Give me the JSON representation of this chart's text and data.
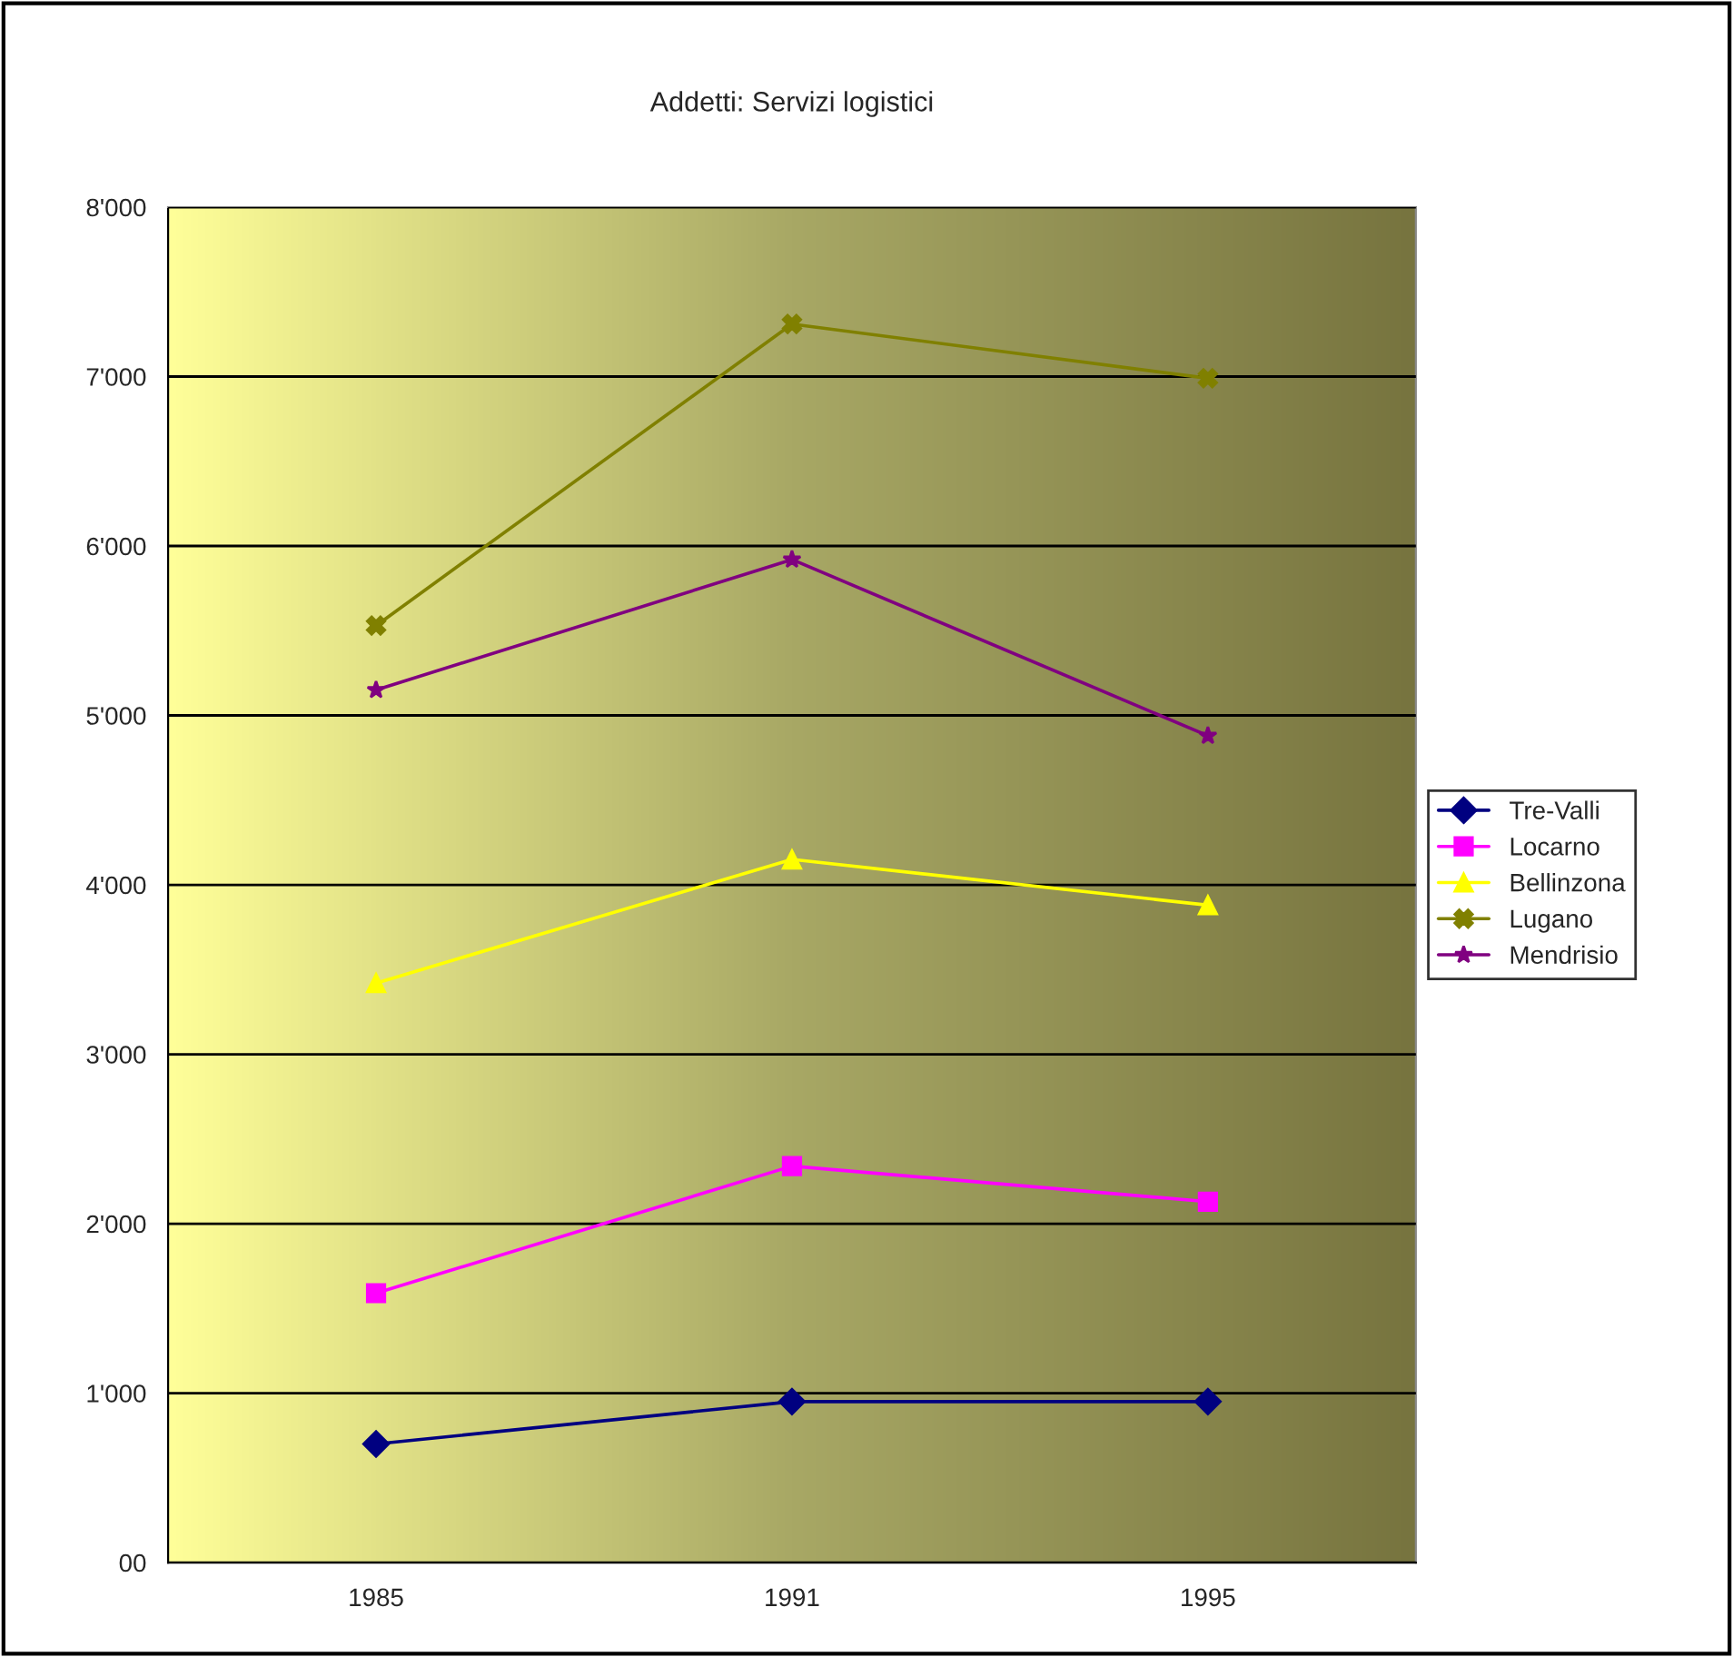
{
  "chart_data": {
    "type": "line",
    "title": "Addetti: Servizi logistici",
    "categories": [
      "1985",
      "1991",
      "1995"
    ],
    "series": [
      {
        "name": "Tre-Valli",
        "color": "#000080",
        "marker": "diamond",
        "values": [
          700,
          950,
          950
        ]
      },
      {
        "name": "Locarno",
        "color": "#ff00ff",
        "marker": "square",
        "values": [
          1590,
          2340,
          2130
        ]
      },
      {
        "name": "Bellinzona",
        "color": "#ffff00",
        "marker": "triangle",
        "values": [
          3420,
          4150,
          3880
        ]
      },
      {
        "name": "Lugano",
        "color": "#808000",
        "marker": "cross",
        "values": [
          5530,
          7310,
          6990
        ]
      },
      {
        "name": "Mendrisio",
        "color": "#800080",
        "marker": "star",
        "values": [
          5150,
          5920,
          4880
        ]
      }
    ],
    "ylim": [
      0,
      8000
    ],
    "yticks": [
      {
        "value": 0,
        "label": "00"
      },
      {
        "value": 1000,
        "label": "1'000"
      },
      {
        "value": 2000,
        "label": "2'000"
      },
      {
        "value": 3000,
        "label": "3'000"
      },
      {
        "value": 4000,
        "label": "4'000"
      },
      {
        "value": 5000,
        "label": "5'000"
      },
      {
        "value": 6000,
        "label": "6'000"
      },
      {
        "value": 7000,
        "label": "7'000"
      },
      {
        "value": 8000,
        "label": "8'000"
      }
    ],
    "grid": "y",
    "legend": "right",
    "line_style": "solid"
  }
}
